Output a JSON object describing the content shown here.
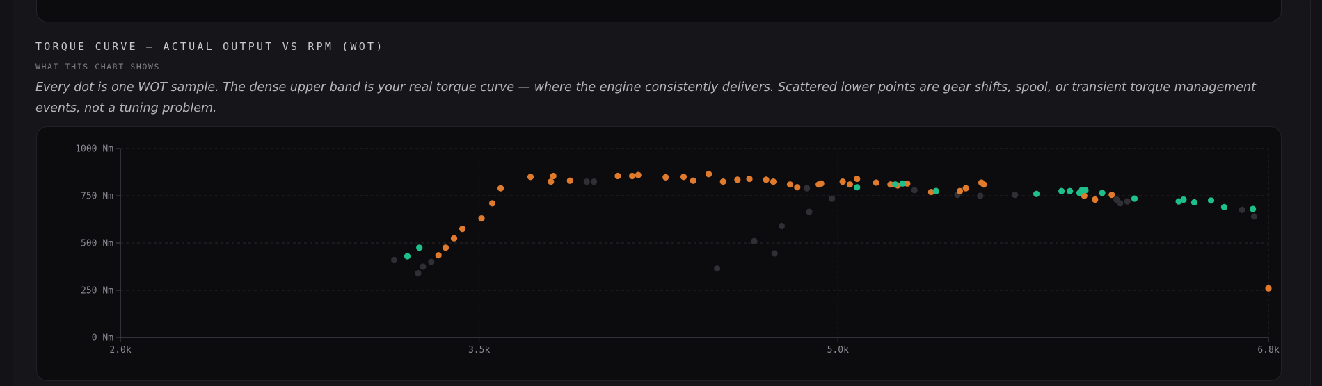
{
  "section": {
    "title": "TORQUE CURVE — ACTUAL OUTPUT VS RPM (WOT)",
    "subheading": "WHAT THIS CHART SHOWS",
    "description": "Every dot is one WOT sample. The dense upper band is your real torque curve — where the engine consistently delivers. Scattered lower points are gear shifts, spool, or transient torque management events, not a tuning problem."
  },
  "colors": {
    "orange": "#e07b2e",
    "green": "#1fbf8a",
    "gray": "#2f2f35"
  },
  "chart_data": {
    "type": "scatter",
    "title": "TORQUE CURVE — ACTUAL OUTPUT VS RPM (WOT)",
    "xlabel": "",
    "ylabel": "",
    "xlim": [
      2000,
      6800
    ],
    "ylim": [
      0,
      1000
    ],
    "x_ticks": [
      {
        "value": 2000,
        "label": "2.0k"
      },
      {
        "value": 3500,
        "label": "3.5k"
      },
      {
        "value": 5000,
        "label": "5.0k"
      },
      {
        "value": 6800,
        "label": "6.8k"
      }
    ],
    "y_ticks": [
      {
        "value": 0,
        "label": "0 Nm"
      },
      {
        "value": 250,
        "label": "250 Nm"
      },
      {
        "value": 500,
        "label": "500 Nm"
      },
      {
        "value": 750,
        "label": "750 Nm"
      },
      {
        "value": 1000,
        "label": "1000 Nm"
      }
    ],
    "grid": true,
    "series": [
      {
        "color": "orange",
        "points": [
          [
            3330,
            435
          ],
          [
            3360,
            475
          ],
          [
            3395,
            525
          ],
          [
            3430,
            575
          ],
          [
            3510,
            630
          ],
          [
            3555,
            710
          ],
          [
            3590,
            790
          ],
          [
            3715,
            850
          ],
          [
            3800,
            825
          ],
          [
            3810,
            855
          ],
          [
            3880,
            830
          ],
          [
            4080,
            855
          ],
          [
            4140,
            855
          ],
          [
            4165,
            860
          ],
          [
            4280,
            848
          ],
          [
            4355,
            850
          ],
          [
            4395,
            830
          ],
          [
            4460,
            865
          ],
          [
            4520,
            825
          ],
          [
            4580,
            835
          ],
          [
            4630,
            840
          ],
          [
            4700,
            835
          ],
          [
            4730,
            825
          ],
          [
            4800,
            810
          ],
          [
            4830,
            795
          ],
          [
            4920,
            810
          ],
          [
            4930,
            815
          ],
          [
            5020,
            825
          ],
          [
            5050,
            810
          ],
          [
            5080,
            840
          ],
          [
            5160,
            820
          ],
          [
            5220,
            810
          ],
          [
            5250,
            805
          ],
          [
            5290,
            815
          ],
          [
            5390,
            770
          ],
          [
            5410,
            775
          ],
          [
            5510,
            775
          ],
          [
            5535,
            790
          ],
          [
            5600,
            820
          ],
          [
            5610,
            810
          ],
          [
            6030,
            750
          ],
          [
            6075,
            730
          ],
          [
            6145,
            755
          ],
          [
            6800,
            260
          ]
        ]
      },
      {
        "color": "green",
        "points": [
          [
            3200,
            430
          ],
          [
            3250,
            475
          ],
          [
            5080,
            795
          ],
          [
            5240,
            810
          ],
          [
            5270,
            815
          ],
          [
            5410,
            775
          ],
          [
            5830,
            760
          ],
          [
            5935,
            775
          ],
          [
            5970,
            775
          ],
          [
            6035,
            780
          ],
          [
            6010,
            765
          ],
          [
            6020,
            780
          ],
          [
            6105,
            765
          ],
          [
            6240,
            735
          ],
          [
            6425,
            720
          ],
          [
            6445,
            730
          ],
          [
            6490,
            715
          ],
          [
            6560,
            725
          ],
          [
            6615,
            690
          ],
          [
            6735,
            680
          ]
        ]
      },
      {
        "color": "gray",
        "points": [
          [
            3145,
            410
          ],
          [
            3245,
            340
          ],
          [
            3265,
            375
          ],
          [
            3300,
            400
          ],
          [
            3950,
            825
          ],
          [
            3980,
            825
          ],
          [
            4495,
            365
          ],
          [
            4650,
            510
          ],
          [
            4735,
            445
          ],
          [
            4765,
            590
          ],
          [
            4870,
            790
          ],
          [
            4880,
            665
          ],
          [
            4975,
            735
          ],
          [
            5320,
            780
          ],
          [
            5500,
            755
          ],
          [
            5595,
            750
          ],
          [
            5740,
            755
          ],
          [
            6165,
            730
          ],
          [
            6180,
            710
          ],
          [
            6210,
            720
          ],
          [
            6690,
            675
          ],
          [
            6740,
            640
          ]
        ]
      }
    ]
  }
}
